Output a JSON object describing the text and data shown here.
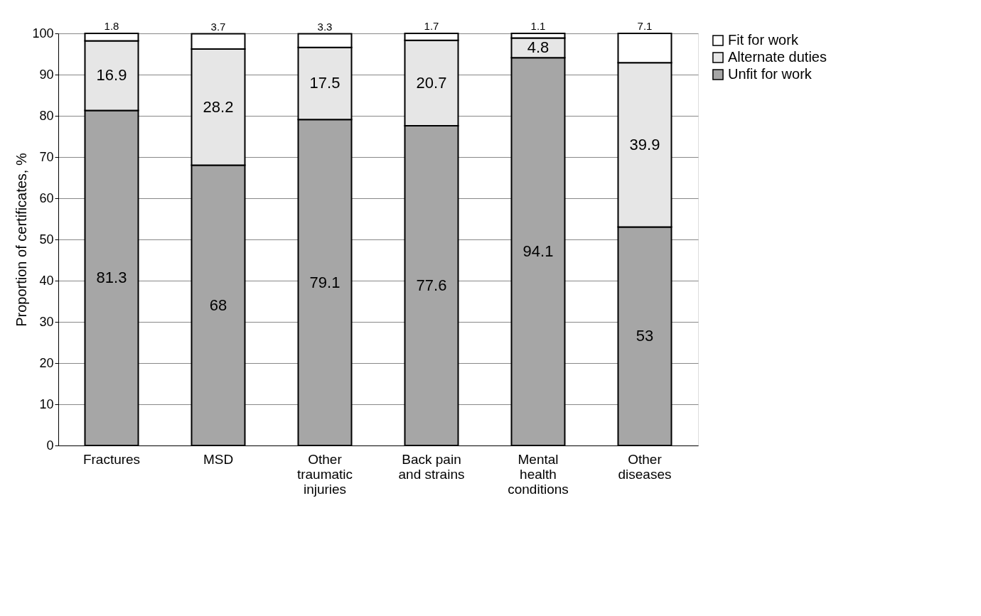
{
  "chart_data": {
    "type": "bar",
    "stacked": true,
    "ylabel": "Proportion of certificates, %",
    "categories": [
      "Fractures",
      "MSD",
      "Other traumatic injuries",
      "Back pain and strains",
      "Mental health conditions",
      "Other diseases"
    ],
    "series": [
      {
        "name": "Unfit for work",
        "color": "#a6a6a6",
        "values": [
          81.3,
          68,
          79.1,
          77.6,
          94.1,
          53
        ]
      },
      {
        "name": "Alternate duties",
        "color": "#e6e6e6",
        "values": [
          16.9,
          28.2,
          17.5,
          20.7,
          4.8,
          39.9
        ]
      },
      {
        "name": "Fit for work",
        "color": "#ffffff",
        "values": [
          1.8,
          3.7,
          3.3,
          1.7,
          1.1,
          7.1
        ]
      }
    ],
    "ylim": [
      0,
      100
    ],
    "yticks": [
      0,
      10,
      20,
      30,
      40,
      50,
      60,
      70,
      80,
      90,
      100
    ],
    "grid": "y",
    "legend": "right",
    "data_labels": true
  }
}
